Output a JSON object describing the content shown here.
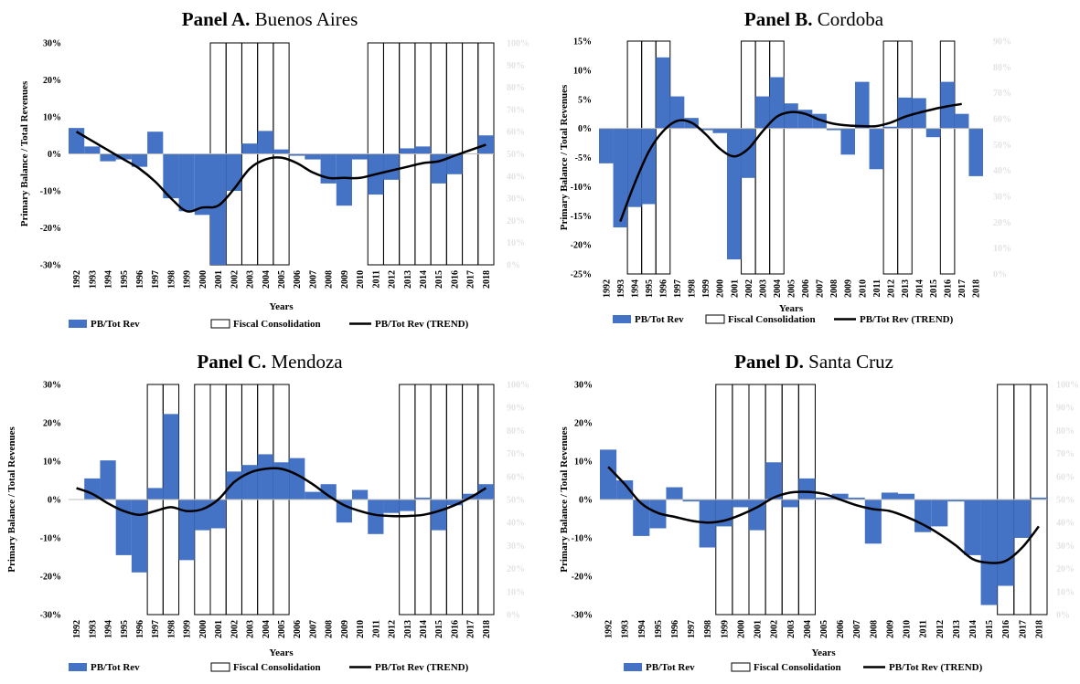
{
  "colors": {
    "bar": "#4472C4",
    "trend": "#000000",
    "consolidation_box": "#000000"
  },
  "chart_data": [
    {
      "type": "bar",
      "panel_label": "Panel A.",
      "title": "Buenos Aires",
      "xlabel": "Years",
      "ylabel": "Primary Balance / Total Revenues",
      "ylim": [
        -30,
        30
      ],
      "yticks": [
        "30%",
        "20%",
        "10%",
        "0%",
        "-10%",
        "-20%",
        "-30%"
      ],
      "y2ticks": [
        "100%",
        "90%",
        "80%",
        "70%",
        "60%",
        "50%",
        "40%",
        "30%",
        "20%",
        "10%",
        "0%"
      ],
      "categories": [
        "1992",
        "1993",
        "1994",
        "1995",
        "1996",
        "1997",
        "1998",
        "1999",
        "2000",
        "2001",
        "2002",
        "2003",
        "2004",
        "2005",
        "2006",
        "2007",
        "2008",
        "2009",
        "2010",
        "2011",
        "2012",
        "2013",
        "2014",
        "2015",
        "2016",
        "2017",
        "2018"
      ],
      "series": [
        {
          "name": "PB/Tot Rev",
          "type": "bar",
          "values": [
            7,
            2,
            -2,
            -1.5,
            -3.5,
            6,
            -12,
            -15.5,
            -16.5,
            -30,
            -10,
            2.8,
            6.2,
            1.2,
            -0.5,
            -1.5,
            -8,
            -14,
            -1.5,
            -11,
            -7,
            1.5,
            2,
            -8,
            -5.5,
            0,
            5
          ]
        },
        {
          "name": "PB/Tot Rev (TREND)",
          "type": "line",
          "values": [
            6,
            3.5,
            1,
            -1.5,
            -4,
            -7.5,
            -12,
            -15.5,
            -14.5,
            -14,
            -9.5,
            -4,
            -1.5,
            -1,
            -2.5,
            -5,
            -6.5,
            -6.5,
            -6.5,
            -5.5,
            -4.5,
            -3.5,
            -2.5,
            -2,
            -0.5,
            1,
            2.5
          ]
        }
      ],
      "fiscal_consolidation": [
        "2001",
        "2002",
        "2003",
        "2004",
        "2005",
        "2011",
        "2012",
        "2013",
        "2014",
        "2015",
        "2016",
        "2017",
        "2018"
      ],
      "legend": [
        "PB/Tot Rev",
        "Fiscal Consolidation",
        "PB/Tot Rev (TREND)"
      ]
    },
    {
      "type": "bar",
      "panel_label": "Panel B.",
      "title": "Cordoba",
      "xlabel": "Years",
      "ylabel": "Primary Balance / Total Revenues",
      "ylim": [
        -25,
        15
      ],
      "yticks": [
        "15%",
        "10%",
        "5%",
        "0%",
        "-5%",
        "-10%",
        "-15%",
        "-20%",
        "-25%"
      ],
      "y2ticks": [
        "90%",
        "80%",
        "70%",
        "60%",
        "50%",
        "40%",
        "30%",
        "20%",
        "10%",
        "0%"
      ],
      "categories": [
        "1992",
        "1993",
        "1994",
        "1995",
        "1996",
        "1997",
        "1998",
        "1999",
        "2000",
        "2001",
        "2002",
        "2003",
        "2004",
        "2005",
        "2006",
        "2007",
        "2008",
        "2009",
        "2010",
        "2011",
        "2012",
        "2013",
        "2014",
        "2015",
        "2016",
        "2017",
        "2018"
      ],
      "series": [
        {
          "name": "PB/Tot Rev",
          "type": "bar",
          "values": [
            -6,
            -17,
            -13.5,
            -13,
            12.2,
            5.5,
            1.8,
            -0.3,
            -0.8,
            -22.5,
            -8.5,
            5.5,
            8.8,
            4.3,
            3.2,
            2.5,
            -0.3,
            -4.5,
            8,
            -7,
            0.3,
            5.3,
            5.2,
            -1.5,
            8,
            2.5,
            -8.2
          ]
        },
        {
          "name": "PB/Tot Rev (TREND)",
          "type": "line",
          "values": [
            null,
            -16,
            -9.5,
            -4,
            -0.5,
            1.3,
            1,
            -1,
            -3.5,
            -4.8,
            -3.5,
            -0.5,
            2,
            2.8,
            2.5,
            1.5,
            0.8,
            0.5,
            0.4,
            0.4,
            1,
            2,
            2.7,
            3.3,
            3.8,
            4.2,
            null
          ]
        }
      ],
      "fiscal_consolidation": [
        "1994",
        "1995",
        "1996",
        "2002",
        "2003",
        "2004",
        "2012",
        "2013",
        "2016"
      ],
      "legend": [
        "PB/Tot Rev",
        "Fiscal Consolidation",
        "PB/Tot Rev (TREND)"
      ]
    },
    {
      "type": "bar",
      "panel_label": "Panel C.",
      "title": "Mendoza",
      "xlabel": "Years",
      "ylabel": "Primary Balance / Total Revenues",
      "ylim": [
        -30,
        30
      ],
      "yticks": [
        "30%",
        "20%",
        "10%",
        "0%",
        "-10%",
        "-20%",
        "-30%"
      ],
      "y2ticks": [
        "100%",
        "90%",
        "80%",
        "70%",
        "60%",
        "50%",
        "40%",
        "30%",
        "20%",
        "10%",
        "0%"
      ],
      "categories": [
        "1992",
        "1993",
        "1994",
        "1995",
        "1996",
        "1997",
        "1998",
        "1999",
        "2000",
        "2001",
        "2002",
        "2003",
        "2004",
        "2005",
        "2006",
        "2007",
        "2008",
        "2009",
        "2010",
        "2011",
        "2012",
        "2013",
        "2014",
        "2015",
        "2016",
        "2017",
        "2018"
      ],
      "series": [
        {
          "name": "PB/Tot Rev",
          "type": "bar",
          "values": [
            0,
            5.5,
            10.2,
            -14.5,
            -19,
            3,
            22.3,
            -15.8,
            -8,
            -7.5,
            7.3,
            9,
            11.8,
            9.7,
            10.8,
            2,
            4,
            -6,
            2.5,
            -9,
            -3.5,
            -3,
            0.5,
            -8,
            -1.5,
            1.5,
            4
          ]
        },
        {
          "name": "PB/Tot Rev (TREND)",
          "type": "line",
          "values": [
            3,
            1.5,
            -1,
            -3,
            -4,
            -3,
            -2,
            -3,
            -2.5,
            0,
            4.5,
            7,
            8,
            8,
            6.5,
            4,
            1,
            -1.5,
            -3,
            -4,
            -4.3,
            -4.3,
            -4,
            -3,
            -1.5,
            0.5,
            3
          ]
        }
      ],
      "fiscal_consolidation": [
        "1997",
        "1998",
        "2000",
        "2001",
        "2002",
        "2003",
        "2004",
        "2005",
        "2013",
        "2014",
        "2015",
        "2016",
        "2017",
        "2018"
      ],
      "legend": [
        "PB/Tot Rev",
        "Fiscal Consolidation",
        "PB/Tot Rev (TREND)"
      ]
    },
    {
      "type": "bar",
      "panel_label": "Panel D.",
      "title": "Santa Cruz",
      "xlabel": "Years",
      "ylabel": "Primary Balance / Total Revenues",
      "ylim": [
        -30,
        30
      ],
      "yticks": [
        "30%",
        "20%",
        "10%",
        "0%",
        "-10%",
        "-20%",
        "-30%"
      ],
      "y2ticks": [
        "100%",
        "90%",
        "80%",
        "70%",
        "60%",
        "50%",
        "40%",
        "30%",
        "20%",
        "10%",
        "0%"
      ],
      "categories": [
        "1992",
        "1993",
        "1994",
        "1995",
        "1996",
        "1997",
        "1998",
        "1999",
        "2000",
        "2001",
        "2002",
        "2003",
        "2004",
        "2005",
        "2006",
        "2007",
        "2008",
        "2009",
        "2010",
        "2011",
        "2012",
        "2013",
        "2014",
        "2015",
        "2016",
        "2017",
        "2018"
      ],
      "series": [
        {
          "name": "PB/Tot Rev",
          "type": "bar",
          "values": [
            13,
            5,
            -9.5,
            -7.5,
            3.2,
            -0.5,
            -12.5,
            -7,
            -2,
            -8,
            9.7,
            -2,
            5.5,
            0.5,
            1.5,
            0.5,
            -11.5,
            1.8,
            1.5,
            -8.5,
            -7,
            -0.5,
            -14.5,
            -27.5,
            -22.5,
            -10,
            0.5
          ]
        },
        {
          "name": "PB/Tot Rev (TREND)",
          "type": "line",
          "values": [
            8.5,
            4,
            -1,
            -3.5,
            -4.5,
            -5.5,
            -6,
            -5.5,
            -4,
            -2,
            0.5,
            1.8,
            2,
            1.5,
            0,
            -1.5,
            -2.5,
            -3,
            -4.5,
            -6.5,
            -9,
            -12,
            -15.5,
            -16.5,
            -16,
            -12.5,
            -7
          ]
        }
      ],
      "fiscal_consolidation": [
        "1999",
        "2000",
        "2001",
        "2002",
        "2003",
        "2004",
        "2016",
        "2017",
        "2018"
      ],
      "legend": [
        "PB/Tot Rev",
        "Fiscal Consolidation",
        "PB/Tot Rev (TREND)"
      ]
    }
  ]
}
